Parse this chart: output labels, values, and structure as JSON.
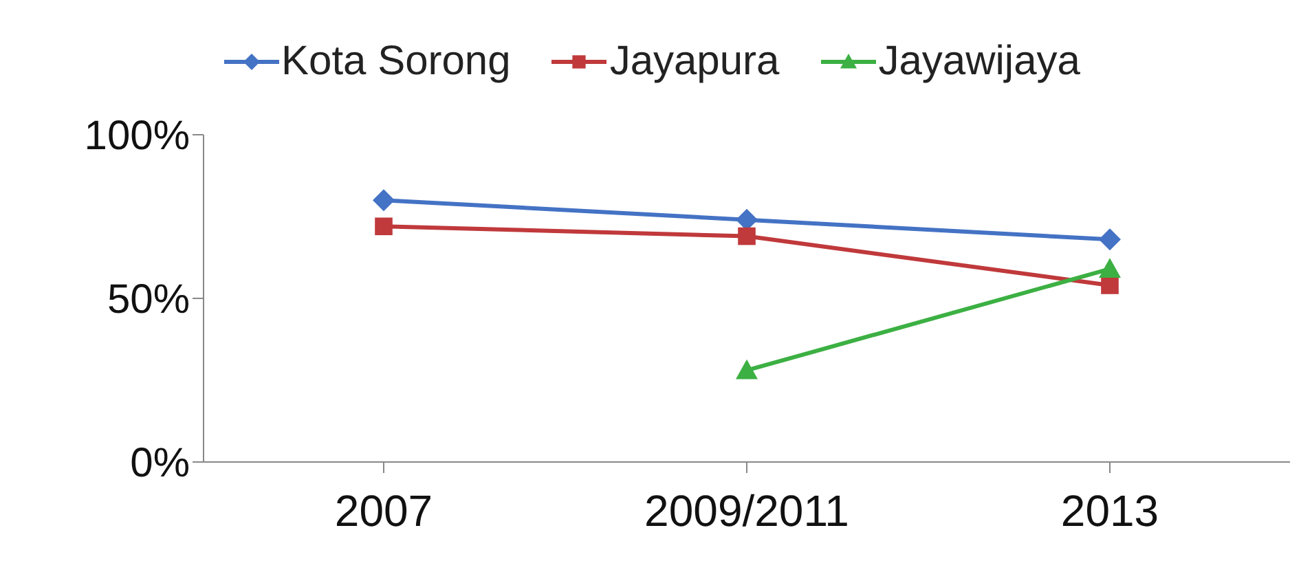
{
  "chart_data": {
    "type": "line",
    "categories": [
      "2007",
      "2009/2011",
      "2013"
    ],
    "series": [
      {
        "name": "Kota Sorong",
        "color": "#4472c4",
        "marker": "diamond",
        "values": [
          80,
          74,
          68
        ]
      },
      {
        "name": "Jayapura",
        "color": "#c0393b",
        "marker": "square",
        "values": [
          72,
          69,
          54
        ]
      },
      {
        "name": "Jayawijaya",
        "color": "#3cb043",
        "marker": "triangle",
        "values": [
          null,
          28,
          59
        ]
      }
    ],
    "ylim": [
      0,
      100
    ],
    "yticks": [
      {
        "value": 0,
        "label": "0%"
      },
      {
        "value": 50,
        "label": "50%"
      },
      {
        "value": 100,
        "label": "100%"
      }
    ],
    "grid": false,
    "legend": "top"
  }
}
